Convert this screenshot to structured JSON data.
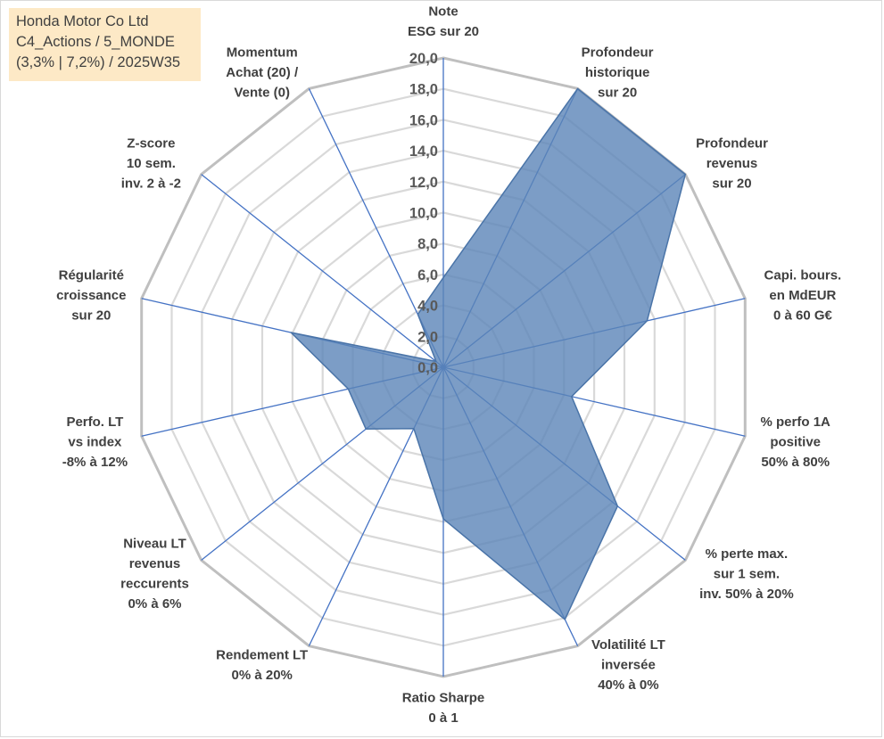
{
  "info_box": {
    "line1": "Honda Motor Co Ltd",
    "line2": "C4_Actions / 5_MONDE",
    "line3": "(3,3% | 7,2%) / 2025W35"
  },
  "colors": {
    "fill": "#5b85b8",
    "fill_opacity": 0.8,
    "stroke": "#4a74a8",
    "spoke": "#4472c4",
    "outer_ring": "#bfbfbf",
    "inner_ring": "#d9d9d9",
    "info_bg": "#fde9c6",
    "text": "#404040"
  },
  "chart_data": {
    "type": "radar",
    "rmin": 0,
    "rmax": 20,
    "tick_step": 2,
    "tick_labels": [
      "0,0",
      "2,0",
      "4,0",
      "6,0",
      "8,0",
      "10,0",
      "12,0",
      "14,0",
      "16,0",
      "18,0",
      "20,0"
    ],
    "axes": [
      [
        "Note",
        "ESG sur 20"
      ],
      [
        "Profondeur",
        "historique",
        "sur 20"
      ],
      [
        "Profondeur",
        "revenus",
        "sur 20"
      ],
      [
        "Capi. bours.",
        "en MdEUR",
        "0 à 60 G€"
      ],
      [
        "% perfo 1A",
        "positive",
        "50% à 80%"
      ],
      [
        "% perte max.",
        "sur 1 sem.",
        "inv. 50% à 20%"
      ],
      [
        "Volatilité LT",
        "inversée",
        "40% à 0%"
      ],
      [
        "Ratio Sharpe",
        "0 à 1"
      ],
      [
        "Rendement LT",
        "0% à 20%"
      ],
      [
        "Niveau LT",
        "revenus",
        "reccurents",
        "0% à 6%"
      ],
      [
        "Perfo. LT",
        "vs index",
        "-8% à 12%"
      ],
      [
        "Régularité",
        "croissance",
        "sur 20"
      ],
      [
        "Z-score",
        "10 sem.",
        "inv. 2 à -2"
      ],
      [
        "Momentum",
        "Achat (20) /",
        "Vente (0)"
      ]
    ],
    "series": [
      {
        "values": [
          5.8,
          20,
          20,
          13.5,
          8.5,
          14.4,
          18.1,
          9.8,
          4.4,
          6.4,
          6.3,
          10.1,
          0.6,
          3.8
        ]
      }
    ],
    "grid": true
  }
}
